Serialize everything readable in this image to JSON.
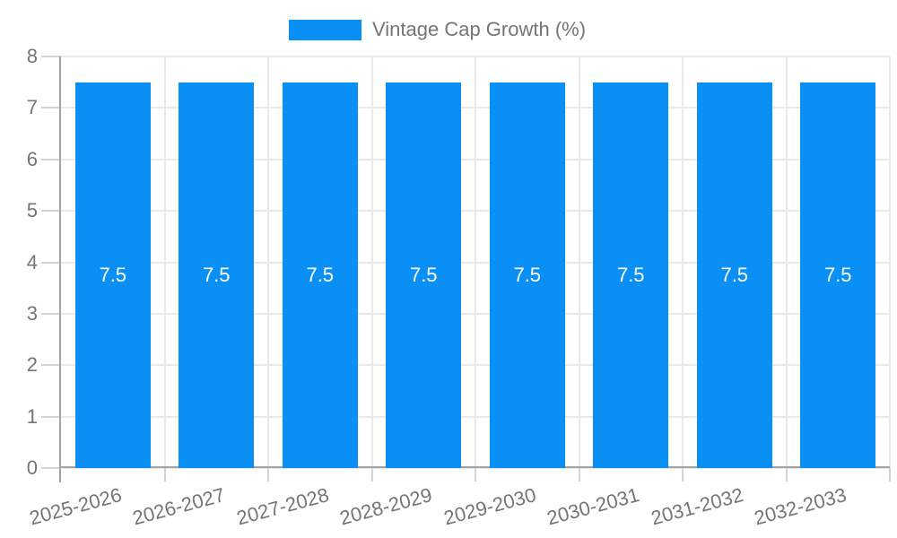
{
  "chart_data": {
    "type": "bar",
    "title": "",
    "legend": "Vintage Cap Growth (%)",
    "legend_position": "top-center",
    "categories": [
      "2025-2026",
      "2026-2027",
      "2027-2028",
      "2028-2029",
      "2029-2030",
      "2030-2031",
      "2031-2032",
      "2032-2033"
    ],
    "series": [
      {
        "name": "Vintage Cap Growth (%)",
        "values": [
          7.5,
          7.5,
          7.5,
          7.5,
          7.5,
          7.5,
          7.5,
          7.5
        ]
      }
    ],
    "bar_labels": [
      "7.5",
      "7.5",
      "7.5",
      "7.5",
      "7.5",
      "7.5",
      "7.5",
      "7.5"
    ],
    "y_ticks": [
      "8",
      "7",
      "6",
      "5",
      "4",
      "3",
      "2",
      "1",
      "0"
    ],
    "ylim": [
      0,
      8
    ],
    "xlabel": "",
    "ylabel": "",
    "grid": true,
    "x_label_rotation_deg": -15,
    "colors": {
      "bar": "#0a90f5",
      "bar_label": "#ffffff",
      "axis_text": "#757575",
      "gridline": "#e9e9e9",
      "tick": "#d4d4d4",
      "axis_line": "#a3a3a3",
      "background": "#ffffff"
    }
  }
}
